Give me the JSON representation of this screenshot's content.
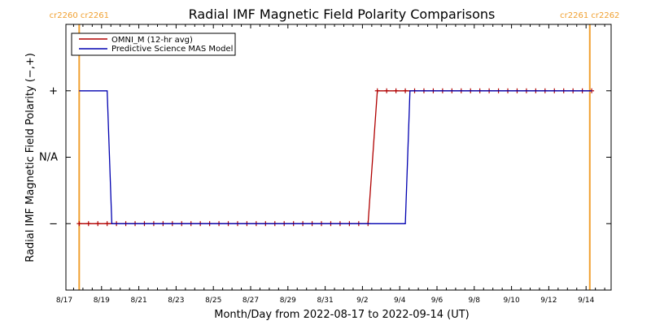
{
  "chart_data": {
    "type": "line",
    "title": "Radial IMF Magnetic Field Polarity Comparisons",
    "xlabel": "Month/Day from 2022-08-17 to 2022-09-14 (UT)",
    "ylabel": "Radial IMF Magnetic Field Polarity (−,+)",
    "x_range_days": [
      0,
      29
    ],
    "x_ticks": [
      {
        "day": 0,
        "label": "8/17"
      },
      {
        "day": 2,
        "label": "8/19"
      },
      {
        "day": 4,
        "label": "8/21"
      },
      {
        "day": 6,
        "label": "8/23"
      },
      {
        "day": 8,
        "label": "8/25"
      },
      {
        "day": 10,
        "label": "8/27"
      },
      {
        "day": 12,
        "label": "8/29"
      },
      {
        "day": 14,
        "label": "8/31"
      },
      {
        "day": 16,
        "label": "9/2"
      },
      {
        "day": 18,
        "label": "9/4"
      },
      {
        "day": 20,
        "label": "9/6"
      },
      {
        "day": 22,
        "label": "9/8"
      },
      {
        "day": 24,
        "label": "9/10"
      },
      {
        "day": 26,
        "label": "9/12"
      },
      {
        "day": 28,
        "label": "9/14"
      }
    ],
    "y_ticks": [
      {
        "value": 1,
        "label": "+"
      },
      {
        "value": 0,
        "label": "N/A"
      },
      {
        "value": -1,
        "label": "−"
      }
    ],
    "ylim": [
      -2,
      2
    ],
    "legend_position": "top-left",
    "series": [
      {
        "name": "OMNI_M (12-hr avg)",
        "color": "#b00000",
        "marker": "+",
        "x": [
          0.8,
          1.3,
          1.8,
          2.3,
          2.8,
          3.3,
          3.8,
          4.3,
          4.8,
          5.3,
          5.8,
          6.3,
          6.8,
          7.3,
          7.8,
          8.3,
          8.8,
          9.3,
          9.8,
          10.3,
          10.8,
          11.3,
          11.8,
          12.3,
          12.8,
          13.3,
          13.8,
          14.3,
          14.8,
          15.3,
          15.8,
          16.3,
          16.8,
          17.3,
          17.8,
          18.3,
          18.8,
          19.3,
          19.8,
          20.3,
          20.8,
          21.3,
          21.8,
          22.3,
          22.8,
          23.3,
          23.8,
          24.3,
          24.8,
          25.3,
          25.8,
          26.3,
          26.8,
          27.3,
          27.8,
          28.3
        ],
        "y": [
          -1,
          -1,
          -1,
          -1,
          -1,
          -1,
          -1,
          -1,
          -1,
          -1,
          -1,
          -1,
          -1,
          -1,
          -1,
          -1,
          -1,
          -1,
          -1,
          -1,
          -1,
          -1,
          -1,
          -1,
          -1,
          -1,
          -1,
          -1,
          -1,
          -1,
          -1,
          -1,
          1,
          1,
          1,
          1,
          1,
          1,
          1,
          1,
          1,
          1,
          1,
          1,
          1,
          1,
          1,
          1,
          1,
          1,
          1,
          1,
          1,
          1,
          1,
          1
        ]
      },
      {
        "name": "Predictive Science MAS Model",
        "color": "#0000b0",
        "marker": "none",
        "x": [
          0.8,
          2.3,
          2.55,
          18.3,
          18.55,
          28.3
        ],
        "y": [
          1,
          1,
          -1,
          -1,
          1,
          1
        ]
      }
    ],
    "carrington_markers": [
      {
        "day": 0.8,
        "label": "cr2260 cr2261",
        "color": "#f0a030"
      },
      {
        "day": 28.2,
        "label": "cr2261 cr2262",
        "color": "#f0a030"
      }
    ]
  }
}
